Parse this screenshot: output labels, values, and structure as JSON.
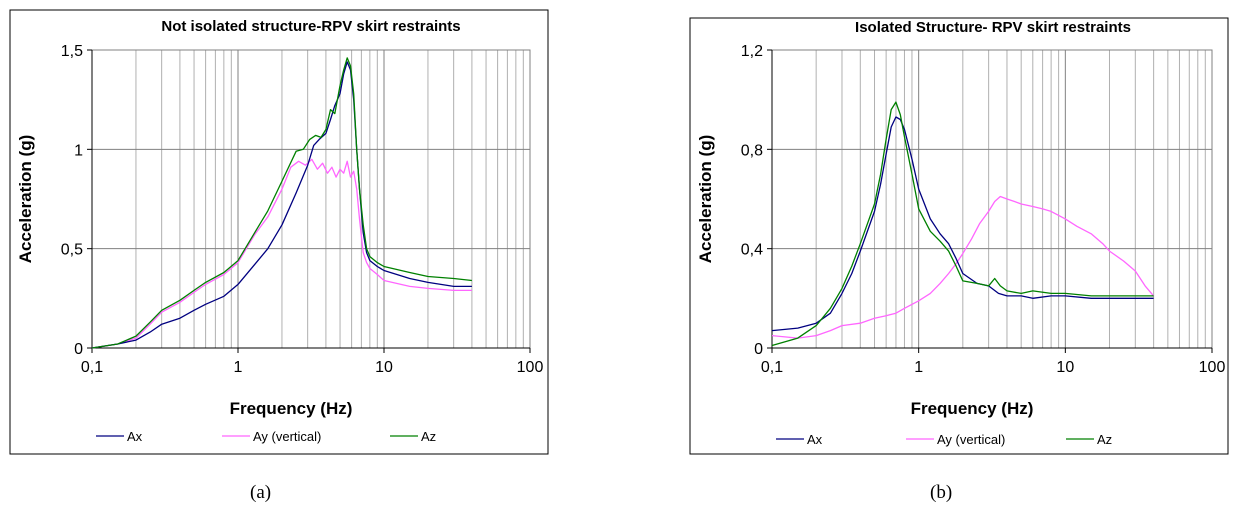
{
  "chart_data": [
    {
      "type": "line",
      "panel": "a",
      "title": "Not isolated structure-RPV skirt restraints",
      "xlabel": "Frequency (Hz)",
      "ylabel": "Acceleration (g)",
      "x_scale": "log",
      "xlim": [
        0.1,
        100
      ],
      "ylim": [
        0,
        1.5
      ],
      "x_ticks": [
        0.1,
        1,
        10,
        100
      ],
      "x_tick_labels": [
        "0,1",
        "1",
        "10",
        "100"
      ],
      "y_ticks": [
        0,
        0.5,
        1,
        1.5
      ],
      "y_tick_labels": [
        "0",
        "0,5",
        "1",
        "1,5"
      ],
      "grid": true,
      "legend_position": "bottom",
      "series": [
        {
          "name": "Ax",
          "color": "#000080",
          "x": [
            0.1,
            0.15,
            0.2,
            0.25,
            0.3,
            0.4,
            0.5,
            0.6,
            0.8,
            1.0,
            1.3,
            1.6,
            2.0,
            2.5,
            3.0,
            3.3,
            3.6,
            4.0,
            4.3,
            4.6,
            5.0,
            5.3,
            5.6,
            5.9,
            6.2,
            6.5,
            6.8,
            7.2,
            7.6,
            8.0,
            9.0,
            10,
            15,
            20,
            30,
            40
          ],
          "y": [
            0.0,
            0.02,
            0.04,
            0.08,
            0.12,
            0.15,
            0.19,
            0.22,
            0.26,
            0.32,
            0.42,
            0.5,
            0.62,
            0.78,
            0.92,
            1.02,
            1.05,
            1.08,
            1.15,
            1.22,
            1.28,
            1.38,
            1.44,
            1.4,
            1.25,
            1.0,
            0.8,
            0.58,
            0.48,
            0.44,
            0.41,
            0.39,
            0.35,
            0.33,
            0.31,
            0.31
          ]
        },
        {
          "name": "Ay (vertical)",
          "color": "#ff66ff",
          "x": [
            0.1,
            0.15,
            0.2,
            0.25,
            0.3,
            0.4,
            0.5,
            0.6,
            0.8,
            1.0,
            1.3,
            1.6,
            2.0,
            2.3,
            2.6,
            2.9,
            3.2,
            3.5,
            3.8,
            4.1,
            4.4,
            4.7,
            5.0,
            5.3,
            5.6,
            5.9,
            6.2,
            6.5,
            6.8,
            7.2,
            7.6,
            8.0,
            9.0,
            10,
            15,
            20,
            30,
            40
          ],
          "y": [
            0.0,
            0.02,
            0.05,
            0.12,
            0.18,
            0.23,
            0.28,
            0.32,
            0.37,
            0.43,
            0.57,
            0.66,
            0.8,
            0.91,
            0.94,
            0.92,
            0.95,
            0.9,
            0.93,
            0.88,
            0.91,
            0.86,
            0.9,
            0.88,
            0.94,
            0.86,
            0.89,
            0.8,
            0.65,
            0.48,
            0.43,
            0.4,
            0.37,
            0.34,
            0.31,
            0.3,
            0.29,
            0.29
          ]
        },
        {
          "name": "Az",
          "color": "#008000",
          "x": [
            0.1,
            0.15,
            0.2,
            0.25,
            0.3,
            0.4,
            0.5,
            0.6,
            0.8,
            1.0,
            1.3,
            1.6,
            2.0,
            2.5,
            2.8,
            3.1,
            3.4,
            3.7,
            4.0,
            4.3,
            4.6,
            5.0,
            5.3,
            5.6,
            5.9,
            6.2,
            6.5,
            6.8,
            7.2,
            7.6,
            8.0,
            9.0,
            10,
            15,
            20,
            30,
            40
          ],
          "y": [
            0.0,
            0.02,
            0.06,
            0.13,
            0.19,
            0.24,
            0.29,
            0.33,
            0.38,
            0.44,
            0.58,
            0.69,
            0.84,
            0.99,
            1.0,
            1.05,
            1.07,
            1.06,
            1.1,
            1.2,
            1.18,
            1.32,
            1.4,
            1.46,
            1.42,
            1.28,
            1.0,
            0.8,
            0.62,
            0.5,
            0.46,
            0.43,
            0.41,
            0.38,
            0.36,
            0.35,
            0.34
          ]
        }
      ],
      "caption": "(a)"
    },
    {
      "type": "line",
      "panel": "b",
      "title": "Isolated Structure- RPV skirt restraints",
      "xlabel": "Frequency (Hz)",
      "ylabel": "Acceleration (g)",
      "x_scale": "log",
      "xlim": [
        0.1,
        100
      ],
      "ylim": [
        0,
        1.2
      ],
      "x_ticks": [
        0.1,
        1,
        10,
        100
      ],
      "x_tick_labels": [
        "0,1",
        "1",
        "10",
        "100"
      ],
      "y_ticks": [
        0,
        0.4,
        0.8,
        1.2
      ],
      "y_tick_labels": [
        "0",
        "0,4",
        "0,8",
        "1,2"
      ],
      "grid": true,
      "legend_position": "bottom",
      "series": [
        {
          "name": "Ax",
          "color": "#000080",
          "x": [
            0.1,
            0.15,
            0.2,
            0.25,
            0.3,
            0.35,
            0.4,
            0.5,
            0.55,
            0.6,
            0.65,
            0.7,
            0.75,
            0.8,
            0.9,
            1.0,
            1.2,
            1.4,
            1.6,
            1.8,
            2.0,
            2.5,
            3.0,
            3.5,
            4.0,
            5.0,
            6.0,
            8.0,
            10,
            15,
            20,
            30,
            40
          ],
          "y": [
            0.07,
            0.08,
            0.1,
            0.14,
            0.22,
            0.3,
            0.39,
            0.55,
            0.66,
            0.78,
            0.89,
            0.93,
            0.92,
            0.88,
            0.76,
            0.64,
            0.52,
            0.46,
            0.42,
            0.36,
            0.3,
            0.26,
            0.25,
            0.22,
            0.21,
            0.21,
            0.2,
            0.21,
            0.21,
            0.2,
            0.2,
            0.2,
            0.2
          ]
        },
        {
          "name": "Ay (vertical)",
          "color": "#ff66ff",
          "x": [
            0.1,
            0.15,
            0.2,
            0.25,
            0.3,
            0.4,
            0.5,
            0.6,
            0.7,
            0.8,
            1.0,
            1.2,
            1.4,
            1.6,
            1.8,
            2.0,
            2.3,
            2.6,
            3.0,
            3.3,
            3.6,
            4.0,
            4.5,
            5.0,
            6.0,
            7.0,
            8.0,
            10,
            12,
            15,
            18,
            20,
            25,
            30,
            35,
            40
          ],
          "y": [
            0.05,
            0.04,
            0.05,
            0.07,
            0.09,
            0.1,
            0.12,
            0.13,
            0.14,
            0.16,
            0.19,
            0.22,
            0.26,
            0.3,
            0.34,
            0.38,
            0.44,
            0.5,
            0.55,
            0.59,
            0.61,
            0.6,
            0.59,
            0.58,
            0.57,
            0.56,
            0.55,
            0.52,
            0.49,
            0.46,
            0.42,
            0.39,
            0.35,
            0.31,
            0.25,
            0.21
          ]
        },
        {
          "name": "Az",
          "color": "#008000",
          "x": [
            0.1,
            0.15,
            0.2,
            0.25,
            0.3,
            0.35,
            0.4,
            0.5,
            0.55,
            0.6,
            0.65,
            0.7,
            0.75,
            0.8,
            0.9,
            1.0,
            1.2,
            1.4,
            1.6,
            1.8,
            2.0,
            2.5,
            3.0,
            3.3,
            3.6,
            4.0,
            5.0,
            6.0,
            8.0,
            10,
            15,
            20,
            30,
            40
          ],
          "y": [
            0.01,
            0.04,
            0.09,
            0.16,
            0.24,
            0.33,
            0.42,
            0.58,
            0.7,
            0.84,
            0.96,
            0.99,
            0.94,
            0.85,
            0.7,
            0.56,
            0.47,
            0.43,
            0.39,
            0.33,
            0.27,
            0.26,
            0.25,
            0.28,
            0.25,
            0.23,
            0.22,
            0.23,
            0.22,
            0.22,
            0.21,
            0.21,
            0.21,
            0.21
          ]
        }
      ],
      "caption": "(b)"
    }
  ]
}
